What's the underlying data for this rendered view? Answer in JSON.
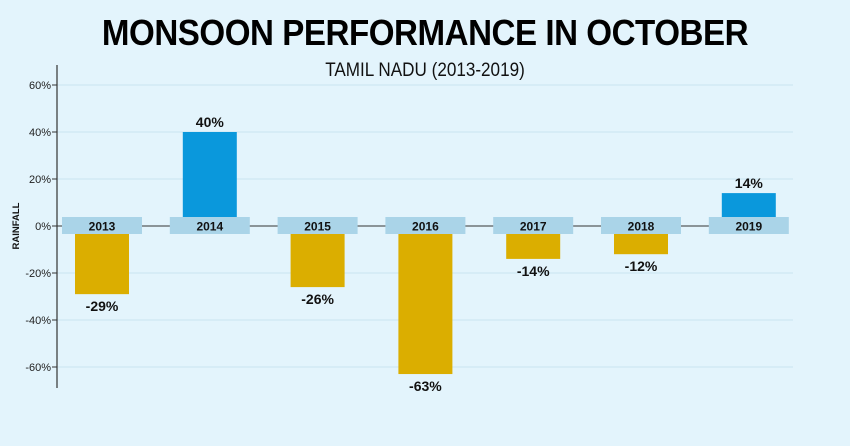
{
  "chart_data": {
    "type": "bar",
    "title": "MONSOON PERFORMANCE IN OCTOBER",
    "subtitle": "TAMIL NADU (2013-2019)",
    "xlabel": "",
    "ylabel": "RAINFALL",
    "ylim": [
      -60,
      60
    ],
    "yticks": [
      60,
      40,
      20,
      0,
      -20,
      -40,
      -60
    ],
    "ytick_labels": [
      "60%",
      "40%",
      "20%",
      "0%",
      "-20%",
      "-40%",
      "-60%"
    ],
    "grid": true,
    "categories": [
      "2013",
      "2014",
      "2015",
      "2016",
      "2017",
      "2018",
      "2019"
    ],
    "values": [
      -29,
      40,
      -26,
      -63,
      -14,
      -12,
      14
    ],
    "data_labels": [
      "-29%",
      "40%",
      "-26%",
      "-63%",
      "-14%",
      "-12%",
      "14%"
    ],
    "colors": {
      "positive": "#0a98dc",
      "negative": "#dbae00",
      "year_box": "#aad4e8",
      "grid": "#cde6f1"
    }
  }
}
